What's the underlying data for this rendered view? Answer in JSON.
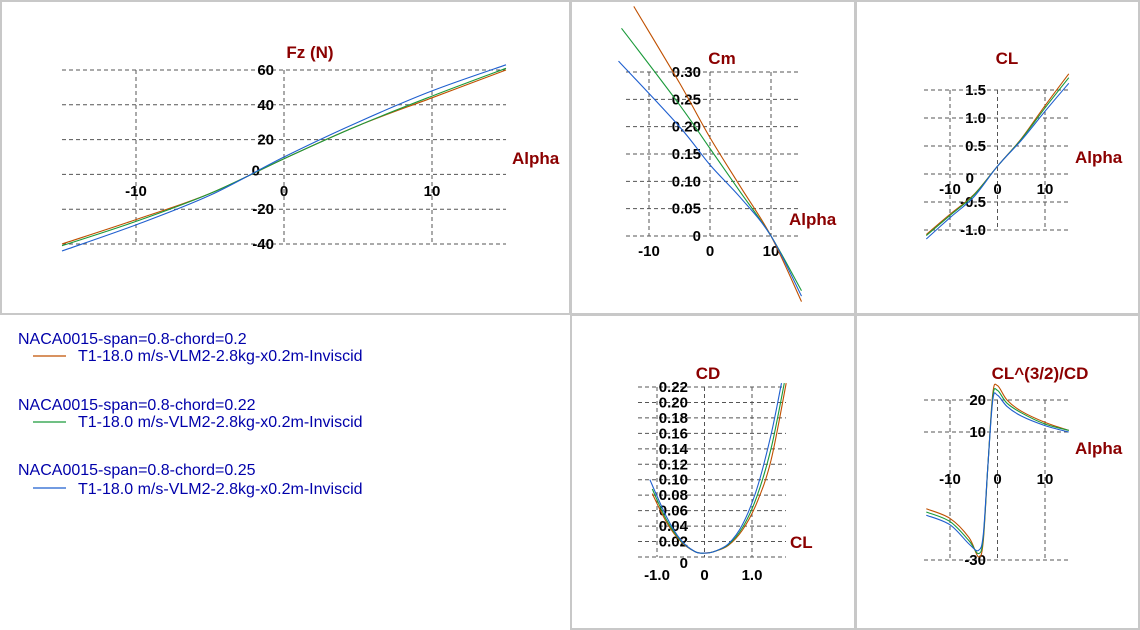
{
  "colors": {
    "series": [
      "#c05000",
      "#1a9a3a",
      "#1f5fcf"
    ],
    "title": "#8b0000",
    "legend_text": "#0000aa"
  },
  "legend": [
    {
      "wing": "NACA0015-span=0.8-chord=0.2",
      "plane": "T1-18.0 m/s-VLM2-2.8kg-x0.2m-Inviscid"
    },
    {
      "wing": "NACA0015-span=0.8-chord=0.22",
      "plane": "T1-18.0 m/s-VLM2-2.8kg-x0.2m-Inviscid"
    },
    {
      "wing": "NACA0015-span=0.8-chord=0.25",
      "plane": "T1-18.0 m/s-VLM2-2.8kg-x0.2m-Inviscid"
    }
  ],
  "chart_data": [
    {
      "id": "fz",
      "type": "line",
      "title": "Fz (N)",
      "xlabel": "Alpha",
      "ylabel": "Fz (N)",
      "xlim": [
        -15,
        15
      ],
      "ylim": [
        -45,
        65
      ],
      "grid": true,
      "xticks": [
        -10,
        0,
        10
      ],
      "xtick_labels": [
        "-10",
        "0",
        "10"
      ],
      "yticks": [
        -40,
        -20,
        0,
        20,
        40,
        60
      ],
      "ytick_labels": [
        "-40",
        "-20",
        "0",
        "20",
        "40",
        "60"
      ],
      "series": [
        {
          "name": "NACA0015-span=0.8-chord=0.2",
          "x": [
            -15,
            -10,
            -5,
            0,
            5,
            10,
            15
          ],
          "y": [
            -40,
            -26,
            -11,
            9,
            28,
            44,
            60
          ]
        },
        {
          "name": "NACA0015-span=0.8-chord=0.22",
          "x": [
            -15,
            -10,
            -5,
            0,
            5,
            10,
            15
          ],
          "y": [
            -41,
            -27,
            -11,
            9,
            28,
            45,
            61
          ]
        },
        {
          "name": "NACA0015-span=0.8-chord=0.25",
          "x": [
            -15,
            -10,
            -5,
            0,
            5,
            10,
            15
          ],
          "y": [
            -44,
            -29,
            -12,
            10,
            30,
            48,
            63
          ]
        }
      ]
    },
    {
      "id": "cm",
      "type": "line",
      "title": "Cm",
      "xlabel": "Alpha",
      "ylabel": "Cm",
      "xlim": [
        -15,
        15
      ],
      "ylim": [
        -0.12,
        0.4
      ],
      "grid": true,
      "xticks": [
        -10,
        0,
        10
      ],
      "xtick_labels": [
        "-10",
        "0",
        "10"
      ],
      "yticks": [
        0,
        0.05,
        0.1,
        0.15,
        0.2,
        0.25,
        0.3
      ],
      "ytick_labels": [
        "0",
        "0.05",
        "0.10",
        "0.15",
        "0.20",
        "0.25",
        "0.30"
      ],
      "series": [
        {
          "name": "NACA0015-span=0.8-chord=0.2",
          "x": [
            -12.5,
            -5,
            0,
            5,
            10,
            15
          ],
          "y": [
            0.42,
            0.28,
            0.18,
            0.09,
            0.0,
            -0.12
          ]
        },
        {
          "name": "NACA0015-span=0.8-chord=0.22",
          "x": [
            -14.5,
            -5,
            0,
            5,
            10,
            15
          ],
          "y": [
            0.38,
            0.24,
            0.16,
            0.08,
            0.0,
            -0.1
          ]
        },
        {
          "name": "NACA0015-span=0.8-chord=0.25",
          "x": [
            -15,
            -5,
            0,
            5,
            10,
            15
          ],
          "y": [
            0.32,
            0.2,
            0.13,
            0.07,
            0.0,
            -0.11
          ]
        }
      ]
    },
    {
      "id": "cl",
      "type": "line",
      "title": "CL",
      "xlabel": "Alpha",
      "ylabel": "CL",
      "xlim": [
        -15,
        15
      ],
      "ylim": [
        -1.3,
        1.9
      ],
      "grid": true,
      "xticks": [
        -10,
        0,
        10
      ],
      "xtick_labels": [
        "-10",
        "0",
        "10"
      ],
      "yticks": [
        -1,
        -0.5,
        0,
        0.5,
        1,
        1.5
      ],
      "ytick_labels": [
        "-1.0",
        "-0.5",
        "0",
        "0.5",
        "1.0",
        "1.5"
      ],
      "series": [
        {
          "name": "NACA0015-span=0.8-chord=0.2",
          "x": [
            -15,
            -10,
            -5,
            0,
            5,
            10,
            15
          ],
          "y": [
            -1.08,
            -0.72,
            -0.37,
            0.14,
            0.63,
            1.22,
            1.79
          ]
        },
        {
          "name": "NACA0015-span=0.8-chord=0.22",
          "x": [
            -15,
            -10,
            -5,
            0,
            5,
            10,
            15
          ],
          "y": [
            -1.1,
            -0.74,
            -0.38,
            0.14,
            0.62,
            1.18,
            1.72
          ]
        },
        {
          "name": "NACA0015-span=0.8-chord=0.25",
          "x": [
            -15,
            -10,
            -5,
            0,
            5,
            10,
            15
          ],
          "y": [
            -1.16,
            -0.78,
            -0.41,
            0.14,
            0.6,
            1.12,
            1.62
          ]
        }
      ]
    },
    {
      "id": "cd",
      "type": "line",
      "title": "CD",
      "xlabel": "CL",
      "ylabel": "CD",
      "xlim": [
        -1.3,
        1.75
      ],
      "ylim": [
        -0.01,
        0.225
      ],
      "grid": true,
      "xticks": [
        -1,
        0,
        1
      ],
      "xtick_labels": [
        "-1.0",
        "0",
        "1.0"
      ],
      "yticks": [
        0,
        0.02,
        0.04,
        0.06,
        0.08,
        0.1,
        0.12,
        0.14,
        0.16,
        0.18,
        0.2,
        0.22
      ],
      "ytick_labels": [
        "0",
        "0.02",
        "0.04",
        "0.06",
        "0.08",
        "0.10",
        "0.12",
        "0.14",
        "0.16",
        "0.18",
        "0.20",
        "0.22"
      ],
      "series": [
        {
          "name": "NACA0015-span=0.8-chord=0.2",
          "x": [
            -1.1,
            -0.8,
            -0.5,
            -0.2,
            0,
            0.2,
            0.5,
            0.8,
            1.1,
            1.4,
            1.72
          ],
          "y": [
            0.082,
            0.045,
            0.02,
            0.007,
            0.005,
            0.007,
            0.015,
            0.035,
            0.07,
            0.125,
            0.225
          ]
        },
        {
          "name": "NACA0015-span=0.8-chord=0.22",
          "x": [
            -1.1,
            -0.8,
            -0.5,
            -0.2,
            0,
            0.2,
            0.5,
            0.8,
            1.1,
            1.4,
            1.68
          ],
          "y": [
            0.088,
            0.048,
            0.021,
            0.007,
            0.005,
            0.007,
            0.016,
            0.038,
            0.078,
            0.14,
            0.225
          ]
        },
        {
          "name": "NACA0015-span=0.8-chord=0.25",
          "x": [
            -1.15,
            -0.8,
            -0.5,
            -0.2,
            0,
            0.2,
            0.5,
            0.8,
            1.1,
            1.4,
            1.62
          ],
          "y": [
            0.1,
            0.052,
            0.022,
            0.007,
            0.005,
            0.007,
            0.017,
            0.042,
            0.088,
            0.158,
            0.225
          ]
        }
      ]
    },
    {
      "id": "endurance",
      "type": "line",
      "title": "CL^(3/2)/CD",
      "xlabel": "Alpha",
      "ylabel": "CL^(3/2)/CD",
      "xlim": [
        -15,
        15
      ],
      "ylim": [
        -31,
        27
      ],
      "grid": true,
      "xticks": [
        -10,
        0,
        10
      ],
      "xtick_labels": [
        "-10",
        "0",
        "10"
      ],
      "yticks": [
        -30,
        10,
        20
      ],
      "ytick_labels": [
        "-30",
        "10",
        "20"
      ],
      "series": [
        {
          "name": "NACA0015-span=0.8-chord=0.2",
          "x": [
            -15,
            -10,
            -6,
            -4,
            -3,
            -2,
            -1,
            0,
            2,
            5,
            10,
            15
          ],
          "y": [
            -14,
            -17,
            -23,
            -29,
            -24,
            0,
            22,
            24.5,
            20,
            16.5,
            13,
            10.5
          ]
        },
        {
          "name": "NACA0015-span=0.8-chord=0.22",
          "x": [
            -15,
            -10,
            -6,
            -4,
            -3,
            -2,
            -1,
            0,
            2,
            5,
            10,
            15
          ],
          "y": [
            -15,
            -18,
            -24,
            -28,
            -23,
            0,
            21,
            23,
            19,
            16,
            12.5,
            10.5
          ]
        },
        {
          "name": "NACA0015-span=0.8-chord=0.25",
          "x": [
            -15,
            -10,
            -6,
            -4,
            -3,
            -2,
            -1,
            0,
            2,
            5,
            10,
            15
          ],
          "y": [
            -16,
            -19,
            -25,
            -27,
            -22,
            0,
            20,
            21.5,
            18,
            15,
            12,
            10
          ]
        }
      ]
    }
  ]
}
